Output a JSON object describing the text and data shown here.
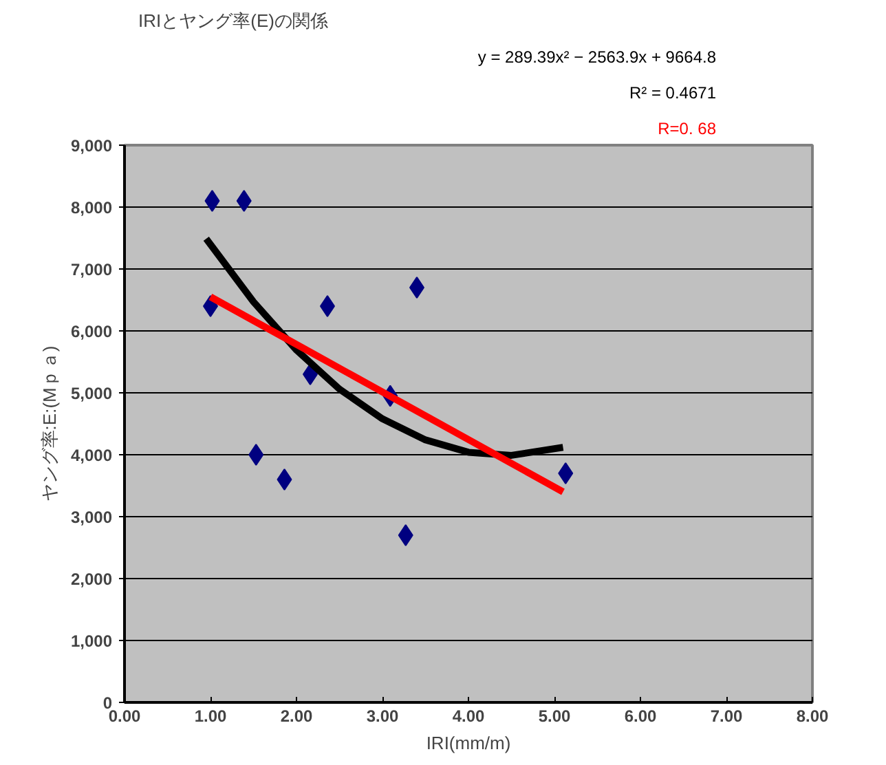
{
  "chart_data": {
    "type": "scatter",
    "title": "IRIとヤング率(E)の関係",
    "xlabel": "IRI(mm/m)",
    "ylabel": "ヤング率:E:(Mｐａ)",
    "annotations": [
      "y = 289.39x² − 2563.9x + 9664.8",
      "R² = 0.4671",
      "R=0. 68"
    ],
    "xlim": [
      0,
      8
    ],
    "xticks": [
      {
        "value": 0,
        "label": "0.00"
      },
      {
        "value": 1,
        "label": "1.00"
      },
      {
        "value": 2,
        "label": "2.00"
      },
      {
        "value": 3,
        "label": "3.00"
      },
      {
        "value": 4,
        "label": "4.00"
      },
      {
        "value": 5,
        "label": "5.00"
      },
      {
        "value": 6,
        "label": "6.00"
      },
      {
        "value": 7,
        "label": "7.00"
      },
      {
        "value": 8,
        "label": "8.00"
      }
    ],
    "ylim": [
      0,
      9000
    ],
    "yticks": [
      0,
      {
        "value": 1000,
        "label": "1,000"
      },
      {
        "value": 2000,
        "label": "2,000"
      },
      {
        "value": 3000,
        "label": "3,000"
      },
      {
        "value": 4000,
        "label": "4,000"
      },
      {
        "value": 5000,
        "label": "5,000"
      },
      {
        "value": 6000,
        "label": "6,000"
      },
      {
        "value": 7000,
        "label": "7,000"
      },
      {
        "value": 8000,
        "label": "8,000"
      },
      {
        "value": 9000,
        "label": "9,000"
      }
    ],
    "grid": "y",
    "series": [
      {
        "marker": "diamond",
        "color": "#000080",
        "x": [
          1.0,
          1.02,
          1.39,
          1.53,
          1.86,
          2.16,
          2.36,
          3.09,
          3.27,
          3.4,
          5.13
        ],
        "values": [
          6400,
          8100,
          8100,
          4000,
          3600,
          5300,
          6400,
          4950,
          2700,
          6700,
          3700
        ]
      },
      {
        "type": "line",
        "marker": "none",
        "line_style": "solid",
        "color": "#000000",
        "x": [
          0.95,
          1.5,
          2.0,
          2.5,
          3.0,
          3.5,
          4.0,
          4.5,
          5.1
        ],
        "values": [
          7490,
          6470,
          5690,
          5060,
          4580,
          4240,
          4040,
          3990,
          4120
        ]
      },
      {
        "type": "line",
        "marker": "none",
        "line_style": "solid",
        "color": "#ff0000",
        "x": [
          1.0,
          5.1
        ],
        "values": [
          6550,
          3400
        ]
      }
    ]
  }
}
